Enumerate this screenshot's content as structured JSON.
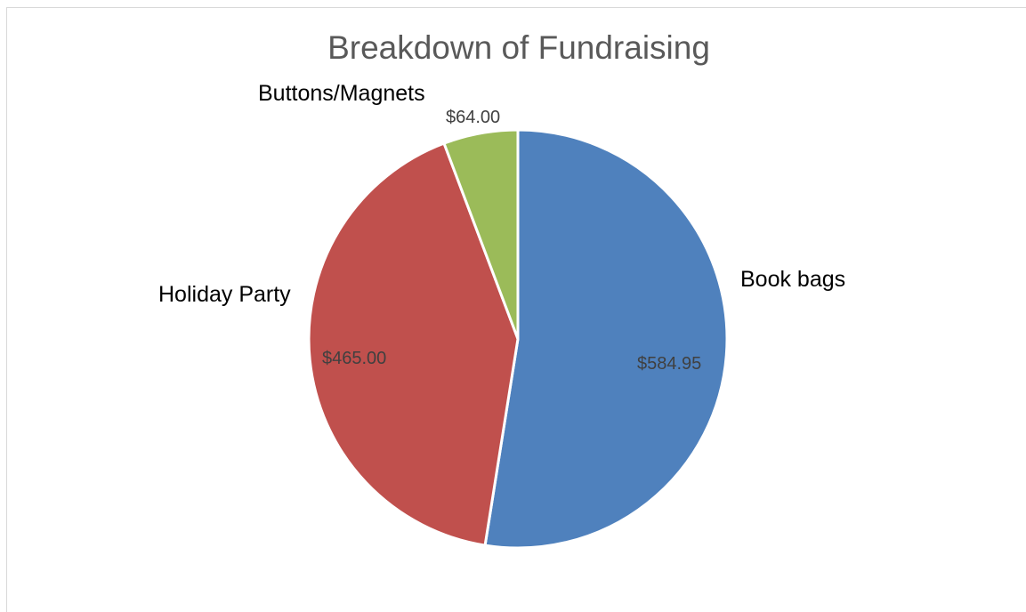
{
  "chart_data": {
    "type": "pie",
    "title": "Breakdown of Fundraising",
    "slices": [
      {
        "name": "Book bags",
        "value": 584.95,
        "value_label": "$584.95",
        "color": "#4f81bd"
      },
      {
        "name": "Holiday Party",
        "value": 465.0,
        "value_label": "$465.00",
        "color": "#c0504d"
      },
      {
        "name": "Buttons/Magnets",
        "value": 64.0,
        "value_label": "$64.00",
        "color": "#9bbb59"
      }
    ],
    "start_angle": "12 o'clock",
    "direction": "clockwise",
    "slice_border_color": "#ffffff",
    "labels": "outside category names, inside values"
  }
}
